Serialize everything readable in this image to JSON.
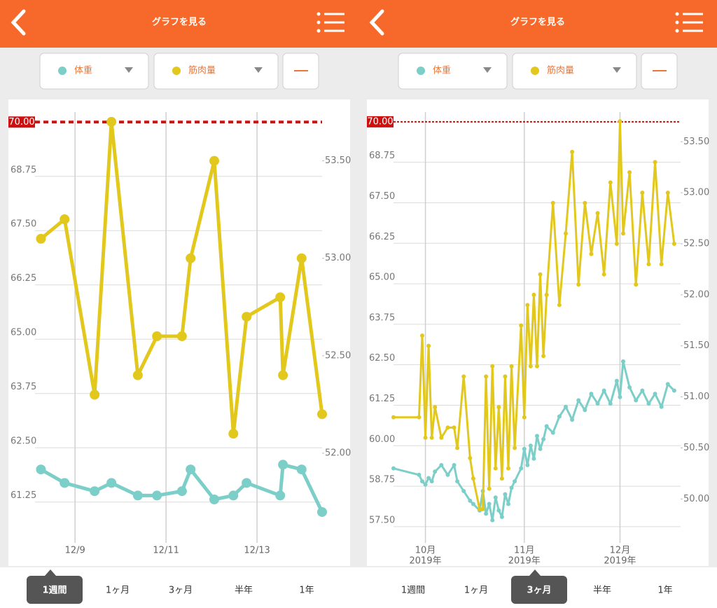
{
  "screens": [
    {
      "title": "グラフを見る",
      "tabs": [
        "1週間",
        "1ヶ月",
        "3ヶ月",
        "半年",
        "1年"
      ],
      "selected_tab": 0
    },
    {
      "title": "グラフを見る",
      "tabs": [
        "1週間",
        "1ヶ月",
        "3ヶ月",
        "半年",
        "1年"
      ],
      "selected_tab": 2
    }
  ],
  "chart_data": [
    {
      "type": "line",
      "x": [
        8.25,
        8.77,
        9.43,
        9.8,
        10.38,
        10.8,
        11.35,
        11.54,
        12.06,
        12.48,
        12.77,
        13.51,
        13.57,
        13.98,
        14.43
      ],
      "xlim": [
        8.12,
        14.43
      ],
      "xticks": [
        {
          "value": 9,
          "label": "12/9"
        },
        {
          "value": 11,
          "label": "12/11"
        },
        {
          "value": 13,
          "label": "12/13"
        }
      ],
      "ylim": [
        60.31,
        70.23
      ],
      "yticks": [
        {
          "value": 61.25,
          "label": "61.25"
        },
        {
          "value": 62.5,
          "label": "62.50"
        },
        {
          "value": 63.75,
          "label": "63.75"
        },
        {
          "value": 65,
          "label": "65.00"
        },
        {
          "value": 66.25,
          "label": "66.25"
        },
        {
          "value": 67.5,
          "label": "67.50"
        },
        {
          "value": 68.75,
          "label": "68.75"
        }
      ],
      "y2lim": [
        51.54,
        53.75
      ],
      "y2ticks": [
        {
          "value": 52,
          "label": "52.00"
        },
        {
          "value": 52.5,
          "label": "52.50"
        },
        {
          "value": 53,
          "label": "53.00"
        },
        {
          "value": 53.5,
          "label": "53.50"
        }
      ],
      "reference_line": {
        "value": 70,
        "label": "70.00",
        "color": "#cc1111"
      },
      "series": [
        {
          "name": "体重",
          "color": "#7ccfc8",
          "axis": "y",
          "values": [
            62.0,
            61.69,
            61.5,
            61.69,
            61.4,
            61.4,
            61.5,
            62.0,
            61.31,
            61.4,
            61.69,
            61.4,
            62.11,
            62.0,
            61.02
          ]
        },
        {
          "name": "筋肉量",
          "color": "#e2c81c",
          "axis": "y2",
          "values": [
            53.1,
            53.2,
            52.3,
            53.7,
            52.4,
            52.6,
            52.6,
            53.0,
            53.5,
            52.1,
            52.7,
            52.8,
            52.4,
            53.0,
            52.2
          ]
        }
      ]
    },
    {
      "type": "line",
      "x": [
        -10,
        -2,
        -1,
        0,
        1,
        2,
        3,
        5,
        7,
        9,
        10,
        12,
        14,
        15,
        17,
        18,
        19,
        20,
        21,
        22,
        23,
        24,
        25,
        26,
        27,
        28,
        30,
        31,
        32,
        33,
        34,
        35,
        36,
        37,
        38,
        40,
        42,
        44,
        46,
        48,
        50,
        52,
        54,
        56,
        58,
        60,
        61,
        62,
        64,
        66,
        68,
        70,
        72,
        74,
        76,
        78
      ],
      "xlim": [
        -10,
        80
      ],
      "xticks": [
        {
          "value": 0,
          "label": "10月",
          "year": "2019年"
        },
        {
          "value": 31,
          "label": "11月",
          "year": "2019年"
        },
        {
          "value": 61,
          "label": "12月",
          "year": "2019年"
        }
      ],
      "ylim": [
        57.0,
        70.3
      ],
      "yticks": [
        {
          "value": 57.5,
          "label": "57.50"
        },
        {
          "value": 58.75,
          "label": "58.75"
        },
        {
          "value": 60,
          "label": "60.00"
        },
        {
          "value": 61.25,
          "label": "61.25"
        },
        {
          "value": 62.5,
          "label": "62.50"
        },
        {
          "value": 63.75,
          "label": "63.75"
        },
        {
          "value": 65,
          "label": "65.00"
        },
        {
          "value": 66.25,
          "label": "66.25"
        },
        {
          "value": 67.5,
          "label": "67.50"
        },
        {
          "value": 68.75,
          "label": "68.75"
        }
      ],
      "y2lim": [
        49.57,
        53.79
      ],
      "y2ticks": [
        {
          "value": 50,
          "label": "50.00"
        },
        {
          "value": 50.5,
          "label": "50.50"
        },
        {
          "value": 51,
          "label": "51.00"
        },
        {
          "value": 51.5,
          "label": "51.50"
        },
        {
          "value": 52,
          "label": "52.00"
        },
        {
          "value": 52.5,
          "label": "52.50"
        },
        {
          "value": 53,
          "label": "53.00"
        },
        {
          "value": 53.5,
          "label": "53.50"
        }
      ],
      "reference_line": {
        "value": 70,
        "label": "70.00",
        "color": "#cc1111"
      },
      "series": [
        {
          "name": "体重",
          "color": "#7ccfc8",
          "axis": "y",
          "values": [
            59.3,
            59.1,
            58.9,
            58.8,
            59.0,
            58.9,
            59.2,
            59.4,
            59.1,
            59.4,
            58.9,
            58.6,
            58.3,
            58.2,
            58.0,
            58.6,
            57.9,
            58.2,
            57.7,
            58.4,
            58.0,
            57.8,
            58.5,
            58.2,
            58.7,
            58.9,
            59.3,
            59.9,
            59.4,
            60.0,
            59.6,
            60.3,
            59.9,
            60.2,
            60.6,
            60.4,
            60.9,
            61.2,
            60.8,
            61.4,
            61.1,
            61.6,
            61.3,
            61.7,
            61.3,
            62.0,
            61.5,
            62.6,
            61.8,
            61.4,
            61.7,
            61.3,
            61.6,
            61.2,
            61.9,
            61.7
          ]
        },
        {
          "name": "筋肉量",
          "color": "#e2c81c",
          "axis": "y2",
          "values": [
            50.8,
            50.8,
            51.6,
            50.6,
            51.5,
            50.6,
            50.9,
            50.6,
            50.7,
            50.7,
            50.5,
            51.2,
            50.4,
            50.2,
            49.9,
            49.9,
            51.2,
            50.1,
            51.3,
            50.3,
            50.9,
            50.2,
            51.2,
            50.3,
            51.3,
            50.5,
            51.7,
            50.8,
            51.9,
            51.3,
            52.0,
            51.3,
            52.2,
            51.4,
            52.0,
            52.9,
            51.9,
            52.6,
            53.4,
            52.1,
            52.9,
            52.4,
            52.8,
            52.2,
            53.1,
            52.5,
            53.7,
            52.6,
            53.2,
            52.1,
            53.0,
            52.3,
            53.3,
            52.3,
            53.0,
            52.5
          ]
        }
      ]
    }
  ]
}
